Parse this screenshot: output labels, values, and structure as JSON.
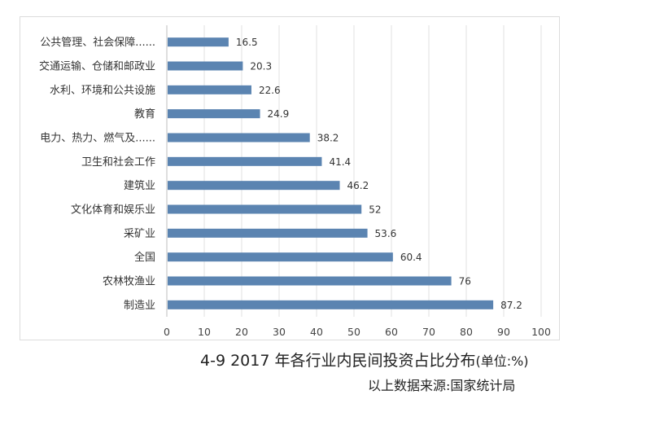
{
  "caption": {
    "title": "4-9   2017 年各行业内民间投资占比分布",
    "unit": "(单位:%)",
    "source": "以上数据来源:国家统计局"
  },
  "colors": {
    "bar": "#5b84b1"
  },
  "chart_data": {
    "type": "bar",
    "orientation": "horizontal",
    "title": "",
    "xlabel": "",
    "ylabel": "",
    "xlim": [
      0,
      100
    ],
    "xticks": [
      "0",
      "10",
      "20",
      "30",
      "40",
      "50",
      "60",
      "70",
      "80",
      "90",
      "100"
    ],
    "grid": true,
    "legend": "none",
    "categories": [
      "公共管理、社会保障......",
      "交通运输、仓储和邮政业",
      "水利、环境和公共设施",
      "教育",
      "电力、热力、燃气及......",
      "卫生和社会工作",
      "建筑业",
      "文化体育和娱乐业",
      "采矿业",
      "全国",
      "农林牧渔业",
      "制造业"
    ],
    "values": [
      16.5,
      20.3,
      22.6,
      24.9,
      38.2,
      41.4,
      46.2,
      52,
      53.6,
      60.4,
      76,
      87.2
    ],
    "value_labels": [
      "16.5",
      "20.3",
      "22.6",
      "24.9",
      "38.2",
      "41.4",
      "46.2",
      "52",
      "53.6",
      "60.4",
      "76",
      "87.2"
    ]
  }
}
